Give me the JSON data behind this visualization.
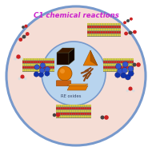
{
  "title": "C1 chemical reactions",
  "title_color": "#cc22cc",
  "background_color": "#ffffff",
  "outer_circle_color": "#7799cc",
  "outer_circle_fill": "#f5ddd5",
  "inner_circle_fill": "#b8d4ee",
  "inner_text": "RE oxides",
  "inner_text_color": "#334466",
  "cube_dark": "#1a0800",
  "cube_top": "#3a1800",
  "cube_right": "#100500",
  "pyramid_color": "#e07800",
  "sphere_color": "#e07800",
  "rod_color": "#c06000",
  "plate_color": "#e07800",
  "slab_yellow": "#d4cc44",
  "slab_red": "#cc2222",
  "slab_blue": "#2244bb",
  "nano_blue": "#1133aa",
  "nano_blue_light": "#3355cc",
  "mol_red": "#cc2222",
  "mol_dark": "#444444",
  "mol_white": "#dddddd",
  "mol_black": "#111111"
}
